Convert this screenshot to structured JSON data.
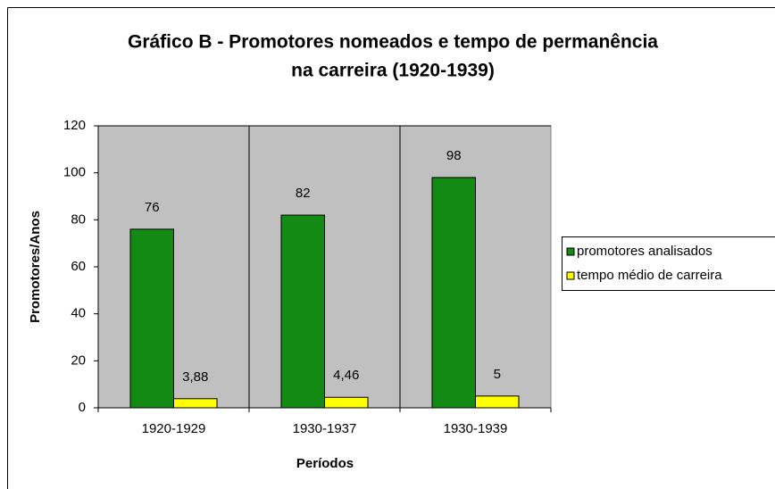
{
  "chart_data": {
    "type": "bar",
    "title": [
      "Gráfico B - Promotores nomeados e tempo de permanência",
      "na carreira (1920-1939)"
    ],
    "x_label": "Períodos",
    "y_label": "Promotores/Anos",
    "categories": [
      "1920-1929",
      "1930-1937",
      "1930-1939"
    ],
    "series": [
      {
        "name": "promotores analisados",
        "color": "#138a13",
        "values": [
          76,
          82,
          98
        ]
      },
      {
        "name": "tempo médio de carreira",
        "color": "#ffff00",
        "values": [
          3.88,
          4.46,
          5
        ],
        "value_labels": [
          "3,88",
          "4,46",
          "5"
        ]
      }
    ],
    "ylim": [
      0,
      120
    ],
    "yticks": [
      0,
      20,
      40,
      60,
      80,
      100,
      120
    ],
    "legend": "right"
  }
}
